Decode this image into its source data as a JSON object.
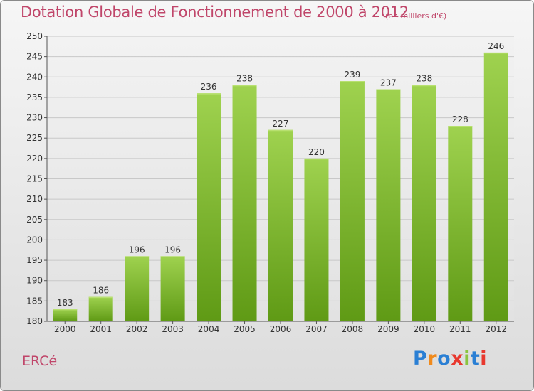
{
  "chart_data": {
    "type": "bar",
    "title": "Dotation Globale de Fonctionnement de 2000 à 2012",
    "subtitle": "(en milliers d'€)",
    "categories": [
      "2000",
      "2001",
      "2002",
      "2003",
      "2004",
      "2005",
      "2006",
      "2007",
      "2008",
      "2009",
      "2010",
      "2011",
      "2012"
    ],
    "values": [
      183,
      186,
      196,
      196,
      236,
      238,
      227,
      220,
      239,
      237,
      238,
      228,
      246
    ],
    "ylim": [
      180,
      250
    ],
    "yticks": [
      180,
      185,
      190,
      195,
      200,
      205,
      210,
      215,
      220,
      225,
      230,
      235,
      240,
      245,
      250
    ],
    "grid": true,
    "bar_color": "#7ab530"
  },
  "footer": {
    "town": "ERCé",
    "logo": {
      "text": "Proxiti",
      "letter_colors": [
        "#2a7fd4",
        "#f08a1c",
        "#2a7fd4",
        "#e8382e",
        "#8bc43f",
        "#2a7fd4",
        "#e8382e"
      ]
    }
  }
}
